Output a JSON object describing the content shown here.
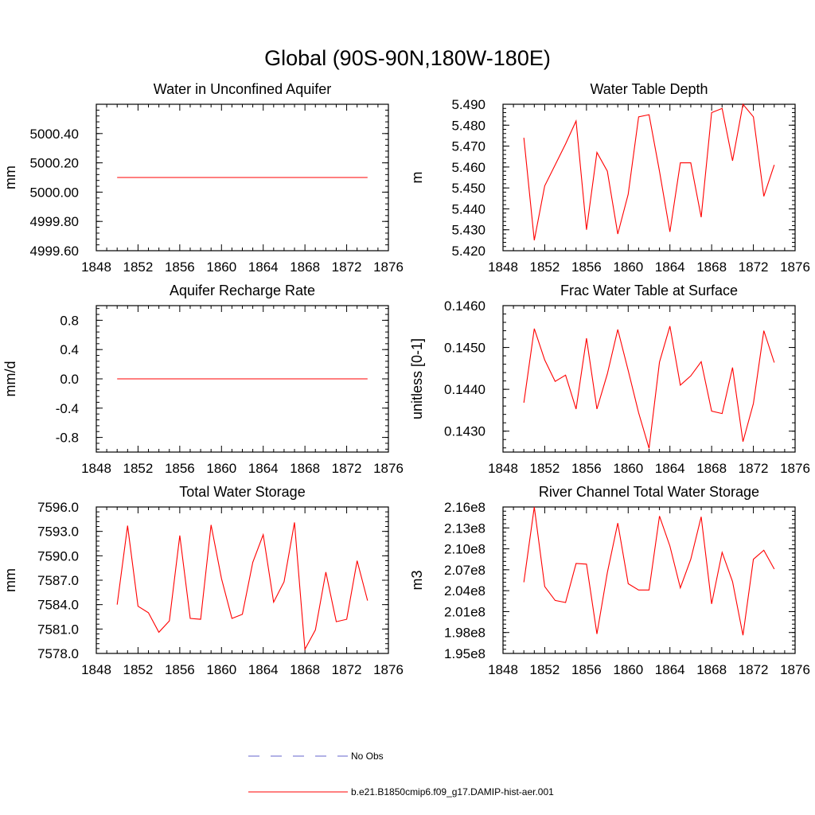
{
  "figure": {
    "suptitle": "Global (90S-90N,180W-180E)",
    "series_color": "#ff0000",
    "obs_color": "#6666cc"
  },
  "legend": {
    "obs_label": "No Obs",
    "model_label": "b.e21.B1850cmip6.f09_g17.DAMIP-hist-aer.001"
  },
  "chart_data": [
    {
      "type": "line",
      "title": "Water in Unconfined Aquifer",
      "ylabel": "mm",
      "xlim": [
        1848,
        1876
      ],
      "xticks": [
        1848,
        1852,
        1856,
        1860,
        1864,
        1868,
        1872,
        1876
      ],
      "xtick_labels": [
        "1848",
        "1852",
        "1856",
        "1860",
        "1864",
        "1868",
        "1872",
        "1876"
      ],
      "ylim": [
        4999.6,
        5000.6
      ],
      "yticks": [
        4999.6,
        4999.8,
        5000.0,
        5000.2,
        5000.4
      ],
      "ytick_labels": [
        "4999.60",
        "4999.80",
        "5000.00",
        "5000.20",
        "5000.40"
      ],
      "x": [
        1850,
        1851,
        1852,
        1853,
        1854,
        1855,
        1856,
        1857,
        1858,
        1859,
        1860,
        1861,
        1862,
        1863,
        1864,
        1865,
        1866,
        1867,
        1868,
        1869,
        1870,
        1871,
        1872,
        1873,
        1874
      ],
      "series": [
        {
          "values": [
            5000.1,
            5000.1,
            5000.1,
            5000.1,
            5000.1,
            5000.1,
            5000.1,
            5000.1,
            5000.1,
            5000.1,
            5000.1,
            5000.1,
            5000.1,
            5000.1,
            5000.1,
            5000.1,
            5000.1,
            5000.1,
            5000.1,
            5000.1,
            5000.1,
            5000.1,
            5000.1,
            5000.1,
            5000.1
          ]
        }
      ]
    },
    {
      "type": "line",
      "title": "Water Table Depth",
      "ylabel": "m",
      "xlim": [
        1848,
        1876
      ],
      "xticks": [
        1848,
        1852,
        1856,
        1860,
        1864,
        1868,
        1872,
        1876
      ],
      "xtick_labels": [
        "1848",
        "1852",
        "1856",
        "1860",
        "1864",
        "1868",
        "1872",
        "1876"
      ],
      "ylim": [
        5.42,
        5.49
      ],
      "yticks": [
        5.42,
        5.43,
        5.44,
        5.45,
        5.46,
        5.47,
        5.48,
        5.49
      ],
      "ytick_labels": [
        "5.420",
        "5.430",
        "5.440",
        "5.450",
        "5.460",
        "5.470",
        "5.480",
        "5.490"
      ],
      "x": [
        1850,
        1851,
        1852,
        1853,
        1854,
        1855,
        1856,
        1857,
        1858,
        1859,
        1860,
        1861,
        1862,
        1863,
        1864,
        1865,
        1866,
        1867,
        1868,
        1869,
        1870,
        1871,
        1872,
        1873,
        1874
      ],
      "series": [
        {
          "values": [
            5.474,
            5.425,
            5.451,
            5.461,
            5.471,
            5.482,
            5.43,
            5.467,
            5.458,
            5.428,
            5.447,
            5.484,
            5.485,
            5.458,
            5.429,
            5.462,
            5.462,
            5.436,
            5.486,
            5.488,
            5.463,
            5.49,
            5.484,
            5.446,
            5.461
          ]
        }
      ]
    },
    {
      "type": "line",
      "title": "Aquifer Recharge Rate",
      "ylabel": "mm/d",
      "xlim": [
        1848,
        1876
      ],
      "xticks": [
        1848,
        1852,
        1856,
        1860,
        1864,
        1868,
        1872,
        1876
      ],
      "xtick_labels": [
        "1848",
        "1852",
        "1856",
        "1860",
        "1864",
        "1868",
        "1872",
        "1876"
      ],
      "ylim": [
        -1.0,
        1.0
      ],
      "yticks": [
        -0.8,
        -0.4,
        0.0,
        0.4,
        0.8
      ],
      "ytick_labels": [
        "-0.8",
        "-0.4",
        "0.0",
        "0.4",
        "0.8"
      ],
      "x": [
        1850,
        1851,
        1852,
        1853,
        1854,
        1855,
        1856,
        1857,
        1858,
        1859,
        1860,
        1861,
        1862,
        1863,
        1864,
        1865,
        1866,
        1867,
        1868,
        1869,
        1870,
        1871,
        1872,
        1873,
        1874
      ],
      "series": [
        {
          "values": [
            0,
            0,
            0,
            0,
            0,
            0,
            0,
            0,
            0,
            0,
            0,
            0,
            0,
            0,
            0,
            0,
            0,
            0,
            0,
            0,
            0,
            0,
            0,
            0,
            0
          ]
        }
      ]
    },
    {
      "type": "line",
      "title": "Frac Water Table at Surface",
      "ylabel": "unitless [0-1]",
      "xlim": [
        1848,
        1876
      ],
      "xticks": [
        1848,
        1852,
        1856,
        1860,
        1864,
        1868,
        1872,
        1876
      ],
      "xtick_labels": [
        "1848",
        "1852",
        "1856",
        "1860",
        "1864",
        "1868",
        "1872",
        "1876"
      ],
      "ylim": [
        0.1425,
        0.146
      ],
      "yticks": [
        0.143,
        0.144,
        0.145,
        0.146
      ],
      "ytick_labels": [
        "0.1430",
        "0.1440",
        "0.1450",
        "0.1460"
      ],
      "x": [
        1850,
        1851,
        1852,
        1853,
        1854,
        1855,
        1856,
        1857,
        1858,
        1859,
        1860,
        1861,
        1862,
        1863,
        1864,
        1865,
        1866,
        1867,
        1868,
        1869,
        1870,
        1871,
        1872,
        1873,
        1874
      ],
      "series": [
        {
          "values": [
            0.14368,
            0.14545,
            0.1447,
            0.14419,
            0.14434,
            0.14353,
            0.14522,
            0.14353,
            0.14437,
            0.14543,
            0.14445,
            0.14344,
            0.14259,
            0.14465,
            0.14551,
            0.1441,
            0.14432,
            0.14466,
            0.14348,
            0.14342,
            0.14452,
            0.14275,
            0.14366,
            0.1454,
            0.14464
          ]
        }
      ]
    },
    {
      "type": "line",
      "title": "Total Water Storage",
      "ylabel": "mm",
      "xlim": [
        1848,
        1876
      ],
      "xticks": [
        1848,
        1852,
        1856,
        1860,
        1864,
        1868,
        1872,
        1876
      ],
      "xtick_labels": [
        "1848",
        "1852",
        "1856",
        "1860",
        "1864",
        "1868",
        "1872",
        "1876"
      ],
      "ylim": [
        7578.0,
        7596.0
      ],
      "yticks": [
        7578.0,
        7581.0,
        7584.0,
        7587.0,
        7590.0,
        7593.0,
        7596.0
      ],
      "ytick_labels": [
        "7578.0",
        "7581.0",
        "7584.0",
        "7587.0",
        "7590.0",
        "7593.0",
        "7596.0"
      ],
      "x": [
        1850,
        1851,
        1852,
        1853,
        1854,
        1855,
        1856,
        1857,
        1858,
        1859,
        1860,
        1861,
        1862,
        1863,
        1864,
        1865,
        1866,
        1867,
        1868,
        1869,
        1870,
        1871,
        1872,
        1873,
        1874
      ],
      "series": [
        {
          "values": [
            7584.0,
            7593.7,
            7583.8,
            7583.0,
            7580.6,
            7582.0,
            7592.5,
            7582.3,
            7582.2,
            7593.8,
            7587.2,
            7582.3,
            7582.8,
            7589.2,
            7592.6,
            7584.3,
            7586.8,
            7594.1,
            7578.5,
            7580.9,
            7588.0,
            7581.9,
            7582.2,
            7589.4,
            7584.5
          ]
        }
      ]
    },
    {
      "type": "line",
      "title": "River Channel Total Water Storage",
      "ylabel": "m3",
      "xlim": [
        1848,
        1876
      ],
      "xticks": [
        1848,
        1852,
        1856,
        1860,
        1864,
        1868,
        1872,
        1876
      ],
      "xtick_labels": [
        "1848",
        "1852",
        "1856",
        "1860",
        "1864",
        "1868",
        "1872",
        "1876"
      ],
      "ylim": [
        195000000.0,
        216000000.0
      ],
      "yticks": [
        195000000.0,
        198000000.0,
        201000000.0,
        204000000.0,
        207000000.0,
        210000000.0,
        213000000.0,
        216000000.0
      ],
      "ytick_labels": [
        "1.95e8",
        "1.98e8",
        "2.01e8",
        "2.04e8",
        "2.07e8",
        "2.10e8",
        "2.13e8",
        "2.16e8"
      ],
      "x": [
        1850,
        1851,
        1852,
        1853,
        1854,
        1855,
        1856,
        1857,
        1858,
        1859,
        1860,
        1861,
        1862,
        1863,
        1864,
        1865,
        1866,
        1867,
        1868,
        1869,
        1870,
        1871,
        1872,
        1873,
        1874
      ],
      "series": [
        {
          "values": [
            205200000.0,
            216000000.0,
            204600000.0,
            202600000.0,
            202300000.0,
            207900000.0,
            207800000.0,
            197800000.0,
            206600000.0,
            213700000.0,
            205000000.0,
            204100000.0,
            204100000.0,
            214700000.0,
            210400000.0,
            204400000.0,
            208500000.0,
            214600000.0,
            202100000.0,
            209500000.0,
            205300000.0,
            197600000.0,
            208500000.0,
            209800000.0,
            207100000.0
          ]
        }
      ]
    }
  ]
}
